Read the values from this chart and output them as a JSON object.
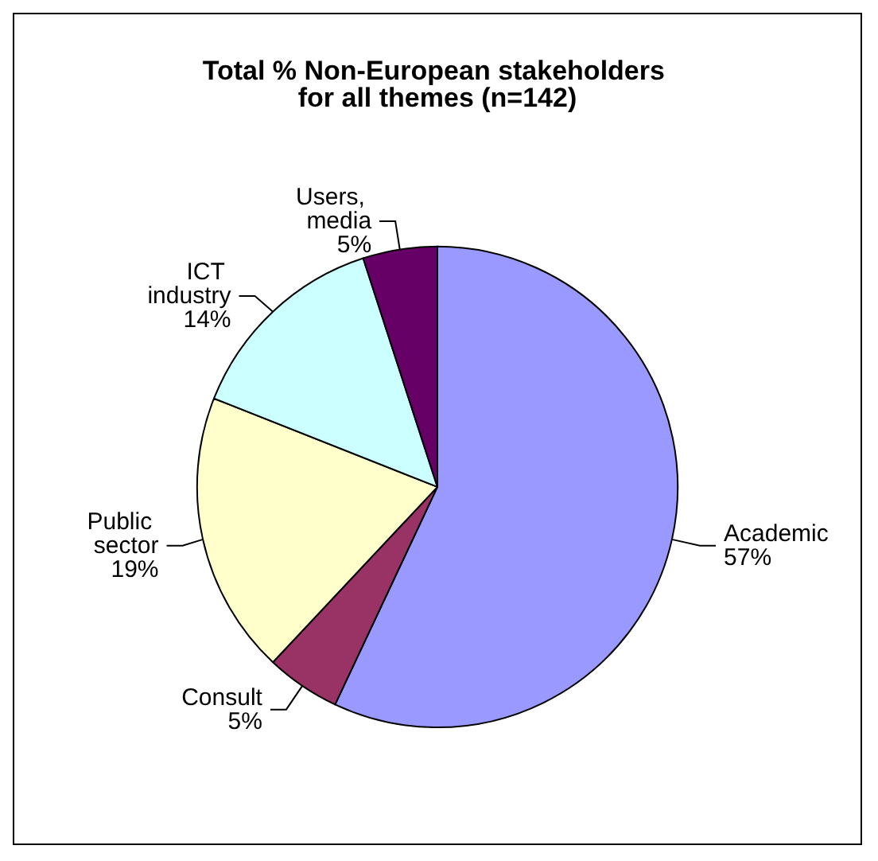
{
  "chart_data": {
    "type": "pie",
    "title": "Total % Non-European stakeholders for all themes (n=142)",
    "categories": [
      "Academic",
      "Consult",
      "Public sector",
      "ICT industry",
      "Users, media"
    ],
    "values": [
      57,
      5,
      19,
      14,
      5
    ],
    "colors": [
      "#9999ff",
      "#993366",
      "#ffffcc",
      "#ccffff",
      "#660066"
    ],
    "value_labels": [
      "57%",
      "5%",
      "19%",
      "14%",
      "5%"
    ],
    "legend": false
  }
}
